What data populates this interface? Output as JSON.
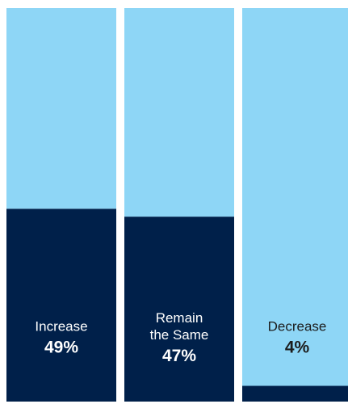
{
  "chart_data": {
    "type": "bar",
    "stacked": true,
    "ylim": [
      0,
      100
    ],
    "categories": [
      {
        "label_lines": [
          "Increase"
        ],
        "value_label": "49%"
      },
      {
        "label_lines": [
          "Remain",
          "the Same"
        ],
        "value_label": "47%"
      },
      {
        "label_lines": [
          "Decrease"
        ],
        "value_label": "4%"
      }
    ],
    "series": [
      {
        "values": [
          49,
          47,
          4
        ],
        "color": "#00204a"
      },
      {
        "values": [
          51,
          53,
          96
        ],
        "color": "#8ed6f6"
      }
    ],
    "label_colors": [
      "#ffffff",
      "#ffffff",
      "#1c1c1c"
    ]
  }
}
